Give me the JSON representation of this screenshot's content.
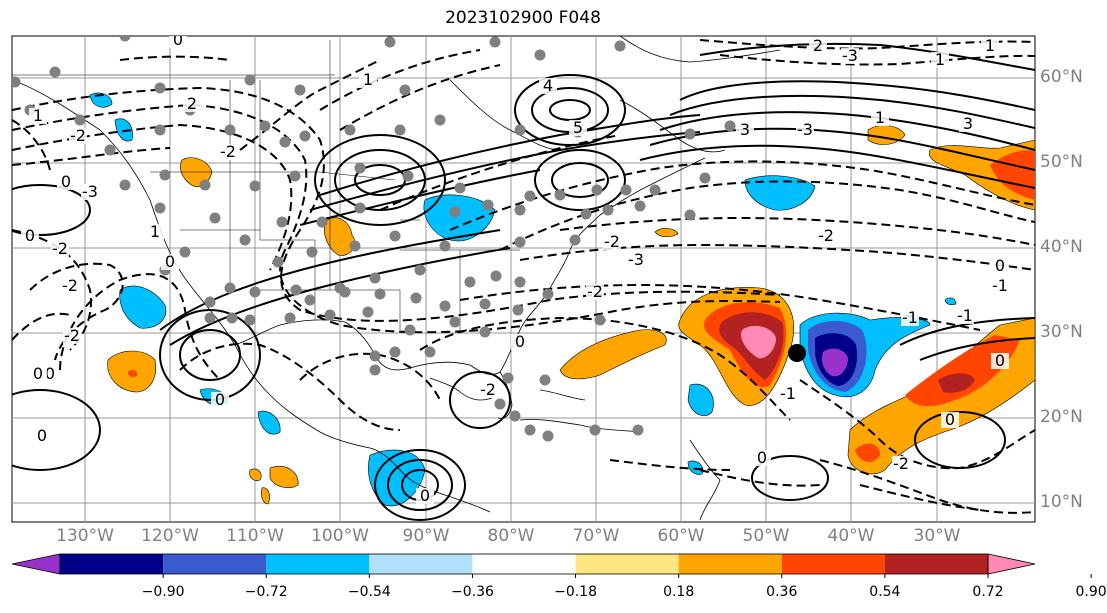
{
  "title": "2023102900 F048",
  "lat_labels": [
    "60°N",
    "50°N",
    "40°N",
    "30°N",
    "20°N",
    "10°N"
  ],
  "lon_labels": [
    "130°W",
    "120°W",
    "110°W",
    "100°W",
    "90°W",
    "80°W",
    "70°W",
    "60°W",
    "50°W",
    "40°W",
    "30°W"
  ],
  "colorbar": {
    "ticks": [
      "−0.90",
      "−0.72",
      "−0.54",
      "−0.36",
      "−0.18",
      "0.18",
      "0.36",
      "0.54",
      "0.72",
      "0.90"
    ],
    "colors": [
      "#9932cc",
      "#00008b",
      "#3a5bd0",
      "#00bfff",
      "#b0e0fa",
      "#ffffff",
      "#ffe680",
      "#ffa500",
      "#ff4500",
      "#b22222",
      "#ff88b5"
    ]
  },
  "contour_labels": [
    "0",
    "0",
    "2",
    "1",
    "1",
    "2",
    "-3",
    "1",
    "4",
    "5",
    "3",
    "-3",
    "3",
    "-2",
    "-2",
    "-2",
    "-3",
    "-2",
    "-3",
    "-2",
    "0",
    "0",
    "0",
    "-2",
    "-2",
    "-2",
    "0",
    "1",
    "0",
    "0",
    "-2",
    "0",
    "-1",
    "-2",
    "0",
    "0",
    "-1",
    "0",
    "-1",
    "-1",
    "1",
    "1",
    "0",
    "0"
  ],
  "markers": [
    {
      "name": "storm-center-dot",
      "color": "#000000"
    }
  ],
  "station_color": "#808080"
}
